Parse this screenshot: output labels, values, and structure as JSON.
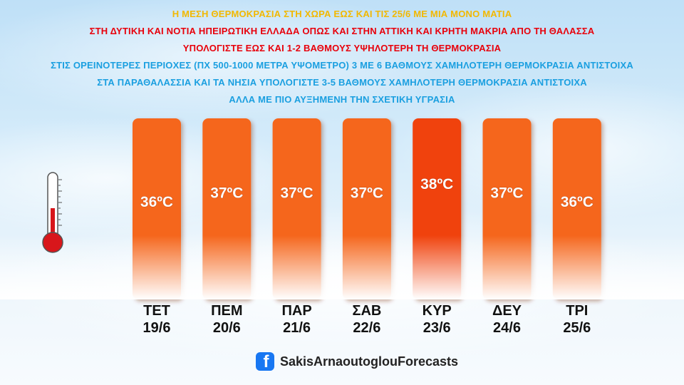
{
  "headlines": [
    {
      "text": "Η ΜΕΣΗ ΘΕΡΜΟΚΡΑΣΙΑ ΣΤΗ ΧΩΡΑ ΕΩΣ ΚΑΙ ΤΙΣ 25/6 ΜΕ ΜΙΑ ΜΟΝΟ ΜΑΤΙΑ",
      "color": "#f2b800"
    },
    {
      "text": "ΣΤΗ ΔΥΤΙΚΗ ΚΑΙ ΝΟΤΙΑ ΗΠΕΙΡΩΤΙΚΗ ΕΛΛΑΔΑ ΟΠΩΣ ΚΑΙ ΣΤΗΝ ΑΤΤΙΚΗ ΚΑΙ ΚΡΗΤΗ ΜΑΚΡΙΑ ΑΠΟ ΤΗ ΘΑΛΑΣΣΑ",
      "color": "#e8000b"
    },
    {
      "text": "ΥΠΟΛΟΓΙΣΤΕ ΕΩΣ ΚΑΙ 1-2 ΒΑΘΜΟΥΣ ΥΨΗΛΟΤΕΡΗ ΤΗ ΘΕΡΜΟΚΡΑΣΙΑ",
      "color": "#e8000b"
    },
    {
      "text": "ΣΤΙΣ ΟΡΕΙΝΟΤΕΡΕΣ ΠΕΡΙΟΧΕΣ (ΠΧ 500-1000 ΜΕΤΡΑ ΥΨΟΜΕΤΡΟ) 3 ΜΕ 6 ΒΑΘΜΟΥΣ ΧΑΜΗΛΟΤΕΡΗ ΘΕΡΜΟΚΡΑΣΙΑ ΑΝΤΙΣΤΟΙΧΑ",
      "color": "#1a9fe0"
    },
    {
      "text": "ΣΤΑ ΠΑΡΑΘΑΛΑΣΣΙΑ ΚΑΙ ΤΑ ΝΗΣΙΑ ΥΠΟΛΟΓΙΣΤΕ 3-5 ΒΑΘΜΟΥΣ ΧΑΜΗΛΟΤΕΡΗ ΘΕΡΜΟΚΡΑΣΙΑ ΑΝΤΙΣΤΟΙΧΑ",
      "color": "#1a9fe0"
    },
    {
      "text": "ΑΛΛΑ ΜΕ ΠΙΟ ΑΥΞΗΜΕΝΗ ΤΗΝ ΣΧΕΤΙΚΗ ΥΓΡΑΣΙΑ",
      "color": "#1a9fe0"
    }
  ],
  "chart_data": {
    "type": "bar",
    "days": [
      "ΤΕΤ",
      "ΠΕΜ",
      "ΠΑΡ",
      "ΣΑΒ",
      "ΚΥΡ",
      "ΔΕΥ",
      "ΤΡΙ"
    ],
    "dates": [
      "19/6",
      "20/6",
      "21/6",
      "22/6",
      "23/6",
      "24/6",
      "25/6"
    ],
    "values": [
      36,
      37,
      37,
      37,
      38,
      37,
      36
    ],
    "value_labels": [
      "36ºC",
      "37ºC",
      "37ºC",
      "37ºC",
      "38ºC",
      "37ºC",
      "36ºC"
    ],
    "bar_colors": [
      "#f5661c",
      "#f5661c",
      "#f5661c",
      "#f5661c",
      "#f0420f",
      "#f5661c",
      "#f5661c"
    ],
    "title": "",
    "xlabel": "",
    "ylabel": ""
  },
  "footer": {
    "icon": "facebook-icon",
    "text": "SakisArnaoutoglouForecasts",
    "icon_color": "#1877f2"
  },
  "thermometer": {
    "icon": "thermometer-icon",
    "color": "#d8161b"
  }
}
